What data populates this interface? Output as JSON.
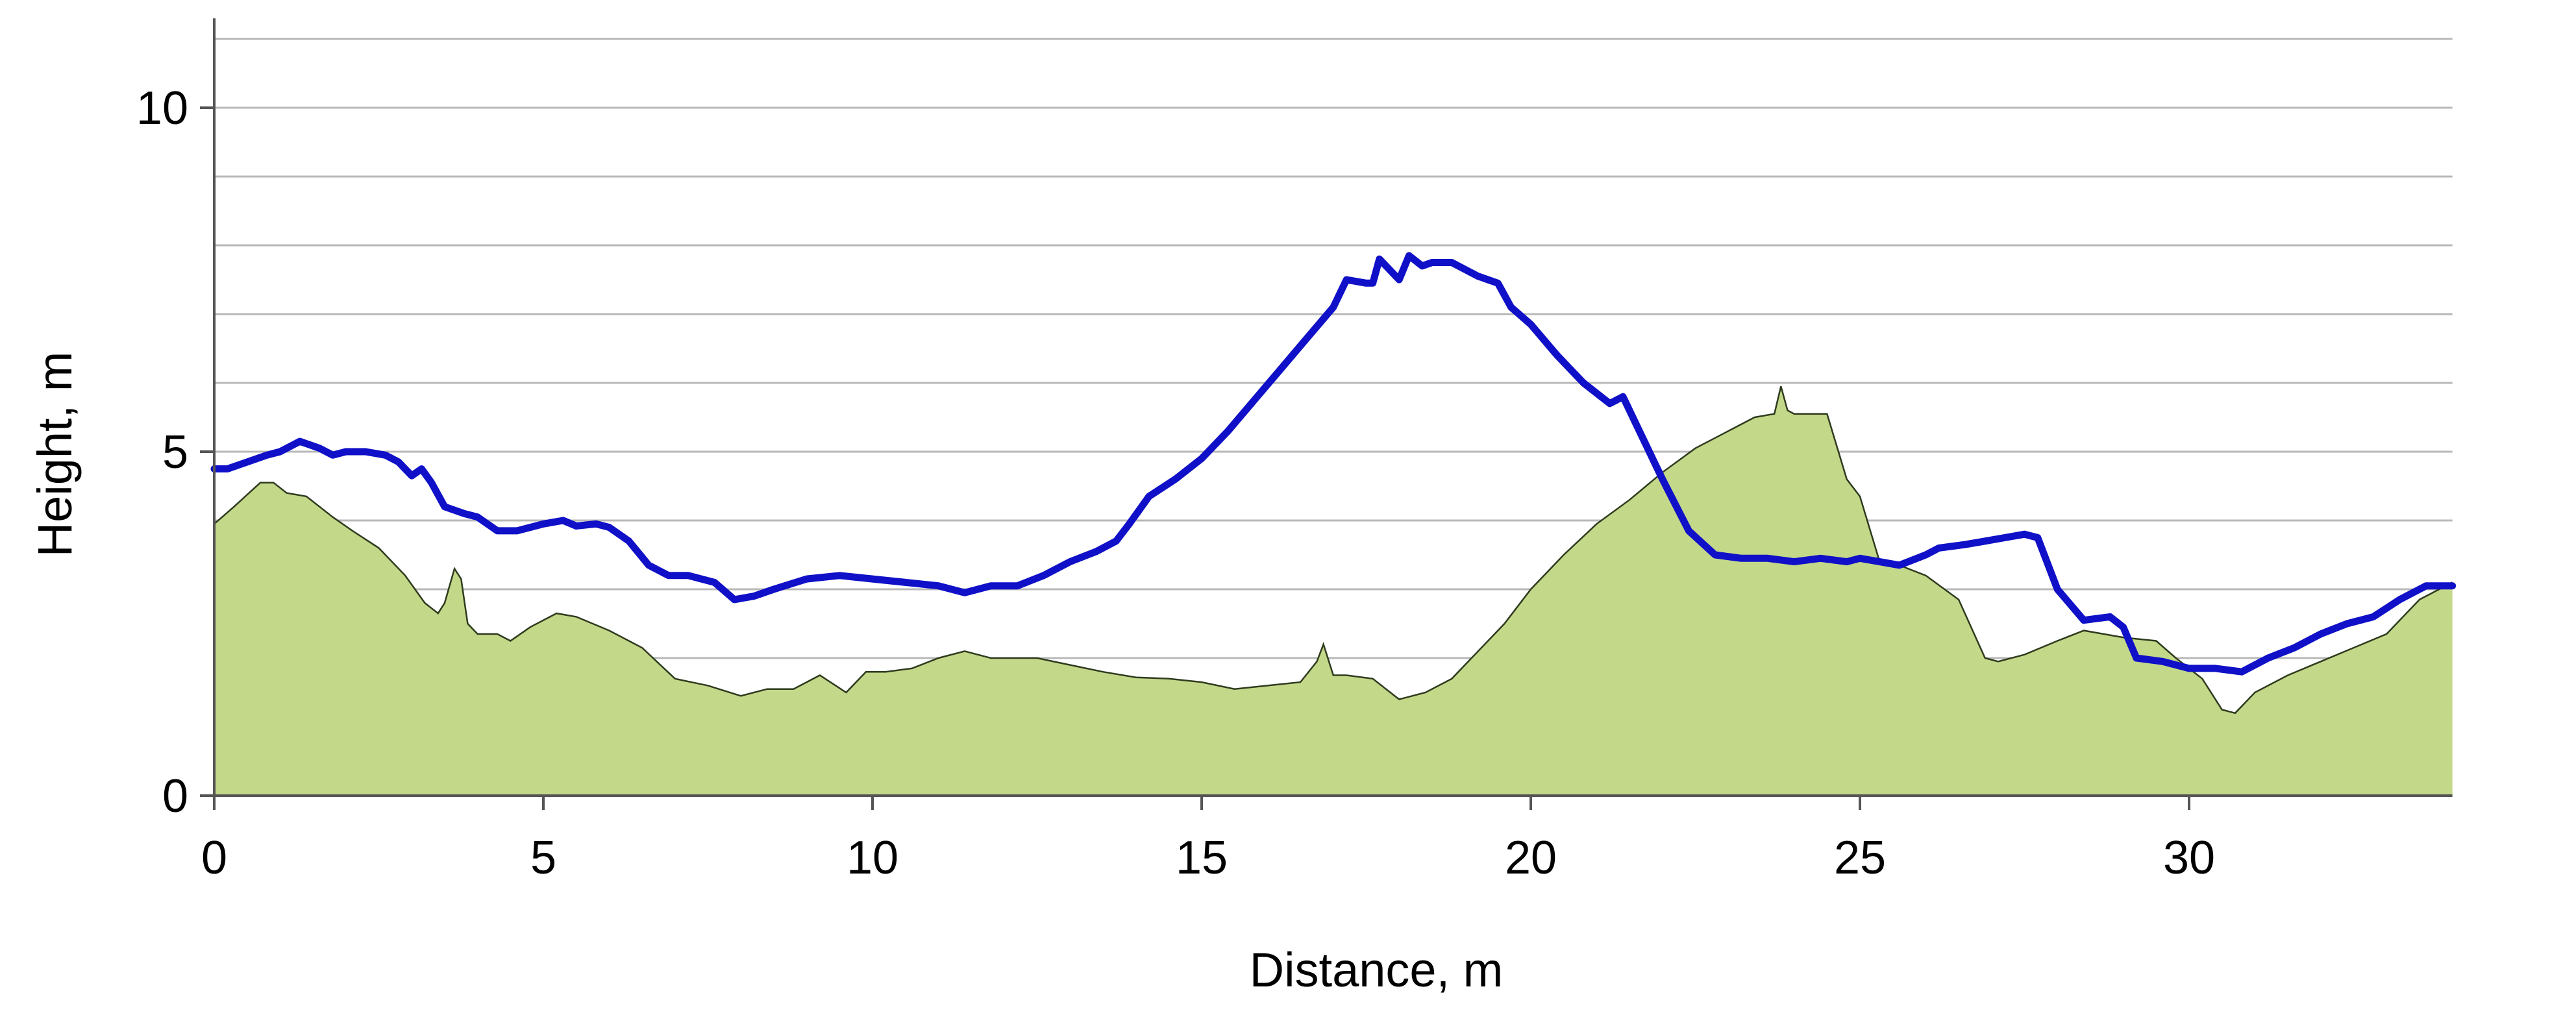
{
  "chart_data": {
    "type": "area",
    "xlabel": "Distance, m",
    "ylabel": "Height, m",
    "xlim": [
      0,
      34
    ],
    "ylim": [
      0,
      11.3
    ],
    "x_ticks": [
      0,
      5,
      10,
      15,
      20,
      25,
      30
    ],
    "x_tick_labels": [
      "0",
      "5",
      "10",
      "15",
      "20",
      "25",
      "30"
    ],
    "y_ticks": [
      0,
      5,
      10
    ],
    "y_tick_labels": [
      "0",
      "5",
      "10"
    ],
    "gridlines_y": [
      1,
      2,
      3,
      4,
      5,
      6,
      7,
      8,
      9,
      10,
      11
    ],
    "grid": "horizontal",
    "legend": "none",
    "series": [
      {
        "kind": "area",
        "color": "#c4d88a",
        "stroke": "#2f3b1e",
        "x": [
          0,
          0.3,
          0.7,
          0.9,
          1.1,
          1.4,
          1.8,
          2.1,
          2.5,
          2.9,
          3.2,
          3.4,
          3.5,
          3.65,
          3.75,
          3.85,
          4.0,
          4.3,
          4.5,
          4.8,
          5.2,
          5.5,
          6.0,
          6.5,
          7.0,
          7.5,
          8.0,
          8.4,
          8.8,
          9.2,
          9.6,
          9.9,
          10.2,
          10.6,
          11.0,
          11.4,
          11.8,
          12.5,
          13.0,
          13.5,
          14.0,
          14.5,
          15.0,
          15.5,
          16.0,
          16.5,
          16.75,
          16.85,
          17.0,
          17.2,
          17.6,
          18.0,
          18.4,
          18.8,
          19.2,
          19.6,
          20.0,
          20.5,
          21.0,
          21.5,
          22.0,
          22.5,
          23.0,
          23.4,
          23.7,
          23.8,
          23.9,
          24.0,
          24.2,
          24.5,
          24.8,
          25.0,
          25.3,
          25.6,
          26.0,
          26.5,
          26.9,
          27.1,
          27.5,
          28.0,
          28.4,
          28.7,
          29.0,
          29.5,
          29.8,
          30.2,
          30.5,
          30.7,
          31.0,
          31.5,
          32.0,
          32.5,
          33.0,
          33.5,
          34.0
        ],
        "y": [
          3.95,
          4.2,
          4.55,
          4.55,
          4.4,
          4.35,
          4.05,
          3.85,
          3.6,
          3.2,
          2.8,
          2.65,
          2.8,
          3.3,
          3.15,
          2.5,
          2.35,
          2.35,
          2.25,
          2.45,
          2.65,
          2.6,
          2.4,
          2.15,
          1.7,
          1.6,
          1.45,
          1.55,
          1.55,
          1.75,
          1.5,
          1.8,
          1.8,
          1.85,
          2.0,
          2.1,
          2.0,
          2.0,
          1.9,
          1.8,
          1.72,
          1.7,
          1.65,
          1.55,
          1.6,
          1.65,
          1.95,
          2.2,
          1.75,
          1.75,
          1.7,
          1.4,
          1.5,
          1.7,
          2.1,
          2.5,
          3.0,
          3.5,
          3.95,
          4.3,
          4.7,
          5.05,
          5.3,
          5.5,
          5.55,
          5.95,
          5.6,
          5.55,
          5.55,
          5.55,
          4.6,
          4.35,
          3.4,
          3.35,
          3.2,
          2.85,
          2.0,
          1.95,
          2.05,
          2.25,
          2.4,
          2.35,
          2.3,
          2.25,
          2.0,
          1.7,
          1.25,
          1.2,
          1.5,
          1.75,
          1.95,
          2.15,
          2.35,
          2.85,
          3.1
        ]
      },
      {
        "kind": "line",
        "color": "#1010c8",
        "x": [
          0,
          0.2,
          0.5,
          0.8,
          1.0,
          1.3,
          1.6,
          1.8,
          2.0,
          2.3,
          2.6,
          2.8,
          3.0,
          3.15,
          3.3,
          3.5,
          3.8,
          4.0,
          4.3,
          4.6,
          5.0,
          5.3,
          5.5,
          5.8,
          6.0,
          6.3,
          6.6,
          6.9,
          7.2,
          7.6,
          7.9,
          8.2,
          8.5,
          9.0,
          9.5,
          10.0,
          10.5,
          11.0,
          11.4,
          11.8,
          12.2,
          12.6,
          13.0,
          13.4,
          13.7,
          13.9,
          14.2,
          14.6,
          15.0,
          15.4,
          15.8,
          16.2,
          16.6,
          17.0,
          17.2,
          17.5,
          17.6,
          17.7,
          17.85,
          18.0,
          18.15,
          18.35,
          18.5,
          18.8,
          19.0,
          19.2,
          19.5,
          19.7,
          20.0,
          20.4,
          20.8,
          21.2,
          21.4,
          21.6,
          22.0,
          22.4,
          22.8,
          23.2,
          23.6,
          24.0,
          24.4,
          24.8,
          25.0,
          25.3,
          25.6,
          26.0,
          26.2,
          26.6,
          26.9,
          27.2,
          27.5,
          27.7,
          28.0,
          28.4,
          28.8,
          29.0,
          29.2,
          29.6,
          30.0,
          30.4,
          30.8,
          31.2,
          31.6,
          32.0,
          32.4,
          32.8,
          33.2,
          33.6,
          34.0
        ],
        "y": [
          4.75,
          4.75,
          4.85,
          4.95,
          5.0,
          5.15,
          5.05,
          4.95,
          5.0,
          5.0,
          4.95,
          4.85,
          4.65,
          4.75,
          4.55,
          4.2,
          4.1,
          4.05,
          3.85,
          3.85,
          3.95,
          4.0,
          3.92,
          3.95,
          3.9,
          3.7,
          3.35,
          3.2,
          3.2,
          3.1,
          2.85,
          2.9,
          3.0,
          3.15,
          3.2,
          3.15,
          3.1,
          3.05,
          2.95,
          3.05,
          3.05,
          3.2,
          3.4,
          3.55,
          3.7,
          3.95,
          4.35,
          4.6,
          4.9,
          5.3,
          5.75,
          6.2,
          6.65,
          7.1,
          7.5,
          7.45,
          7.45,
          7.8,
          7.65,
          7.5,
          7.85,
          7.7,
          7.75,
          7.75,
          7.65,
          7.55,
          7.45,
          7.1,
          6.85,
          6.4,
          6.0,
          5.7,
          5.8,
          5.4,
          4.6,
          3.85,
          3.5,
          3.45,
          3.45,
          3.4,
          3.45,
          3.4,
          3.45,
          3.4,
          3.35,
          3.5,
          3.6,
          3.65,
          3.7,
          3.75,
          3.8,
          3.75,
          3.0,
          2.55,
          2.6,
          2.45,
          2.0,
          1.95,
          1.85,
          1.85,
          1.8,
          2.0,
          2.15,
          2.35,
          2.5,
          2.6,
          2.85,
          3.05,
          3.05
        ]
      }
    ]
  }
}
